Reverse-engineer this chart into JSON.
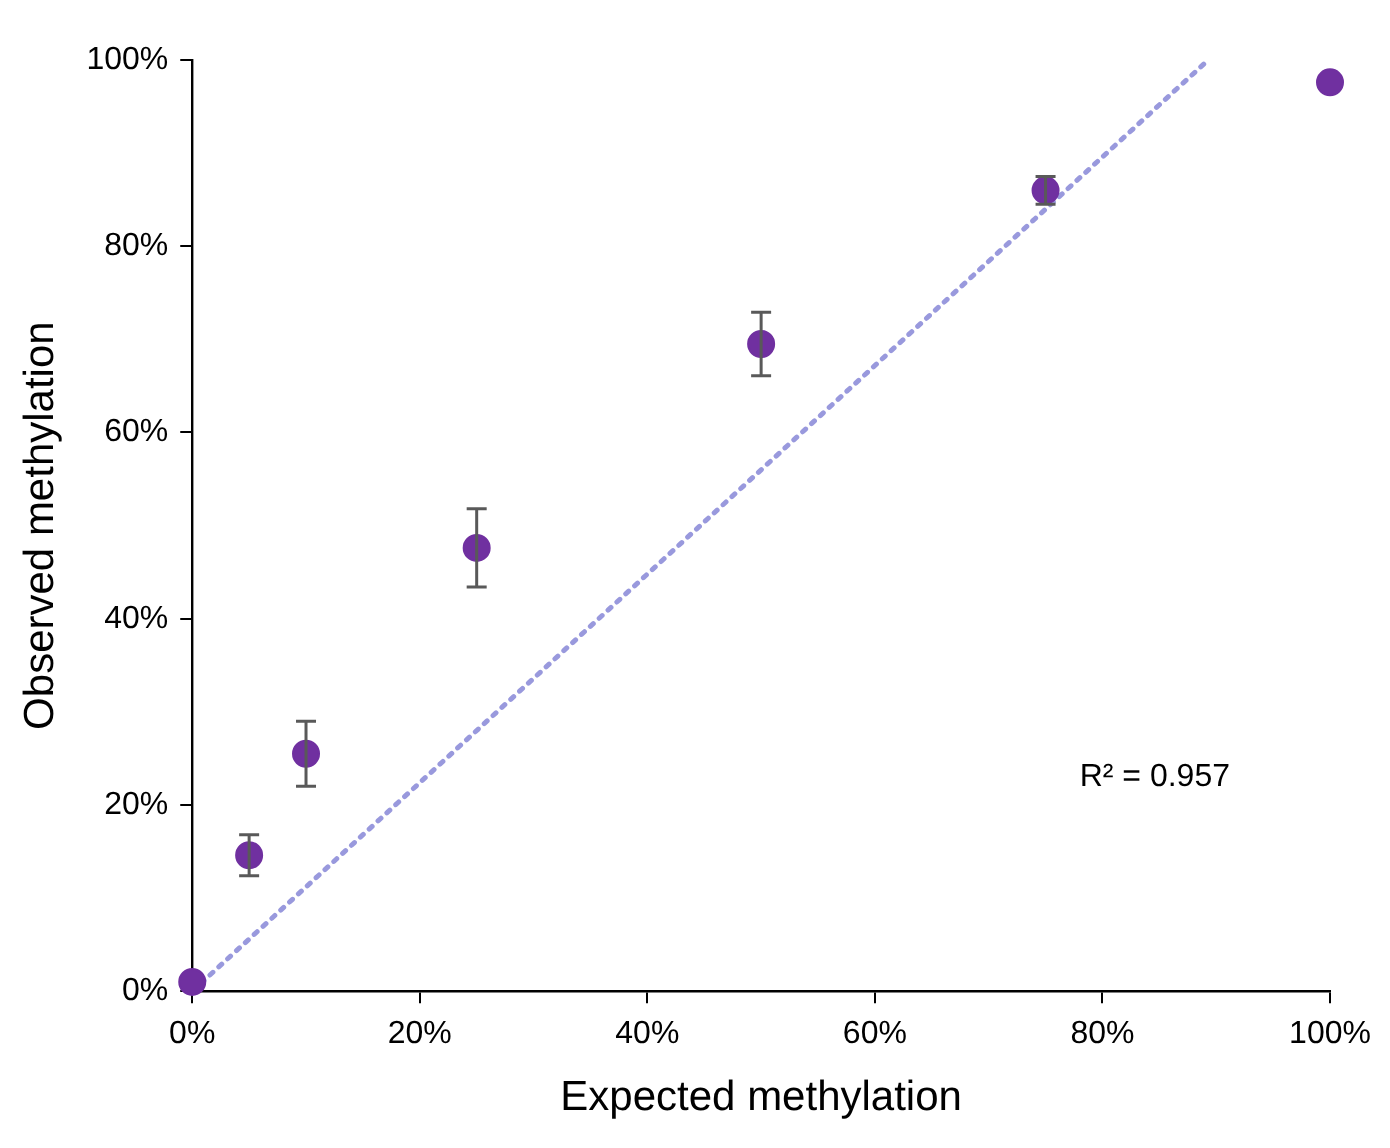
{
  "chart_data": {
    "type": "scatter",
    "xlabel": "Expected methylation",
    "ylabel": "Observed methylation",
    "x": [
      0,
      5,
      10,
      25,
      50,
      75,
      100
    ],
    "series": [
      {
        "color": "#7030a0",
        "values": [
          1,
          14.6,
          25.5,
          47.6,
          69.5,
          86,
          97.6
        ],
        "errors": [
          null,
          2.2,
          3.5,
          4.2,
          3.4,
          1.5,
          null
        ]
      },
      {
        "type": "line",
        "color": "#9999dd",
        "x": [
          0,
          89.3
        ],
        "values": [
          0,
          100
        ],
        "line_style": "dotted",
        "marker": "none"
      }
    ],
    "xlim": [
      0,
      100
    ],
    "ylim": [
      0,
      100
    ],
    "xticks": [
      {
        "value": 0,
        "label": "0%"
      },
      {
        "value": 20,
        "label": "20%"
      },
      {
        "value": 40,
        "label": "40%"
      },
      {
        "value": 60,
        "label": "60%"
      },
      {
        "value": 80,
        "label": "80%"
      },
      {
        "value": 100,
        "label": "100%"
      }
    ],
    "yticks": [
      {
        "value": 0,
        "label": "0%"
      },
      {
        "value": 20,
        "label": "20%"
      },
      {
        "value": 40,
        "label": "40%"
      },
      {
        "value": 60,
        "label": "60%"
      },
      {
        "value": 80,
        "label": "80%"
      },
      {
        "value": 100,
        "label": "100%"
      }
    ],
    "annotations": [
      "R² = 0.957"
    ],
    "grid": false,
    "legend": false,
    "marker": "circle"
  }
}
